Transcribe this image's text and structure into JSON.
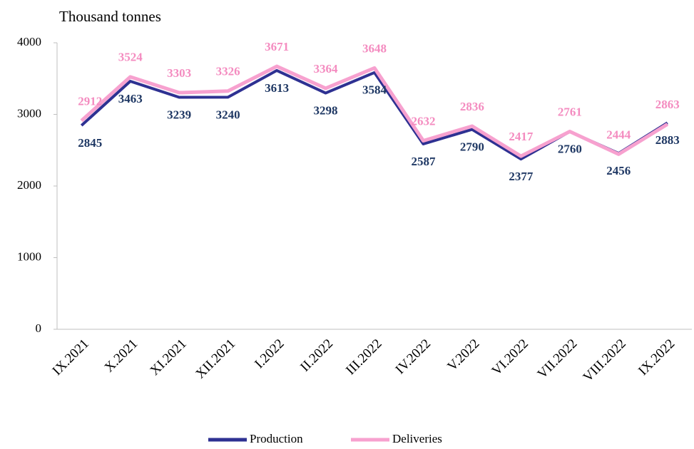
{
  "chart_data": {
    "type": "line",
    "y_label": "Thousand tonnes",
    "categories": [
      "IX.2021",
      "X.2021",
      "XI.2021",
      "XII.2021",
      "I.2022",
      "II.2022",
      "III.2022",
      "IV.2022",
      "V.2022",
      "VI.2022",
      "VII.2022",
      "VIII.2022",
      "IX.2022"
    ],
    "series": [
      {
        "name": "Production",
        "color": "#2e3192",
        "label_color": "#1f3864",
        "values": [
          2845,
          3463,
          3239,
          3240,
          3613,
          3298,
          3584,
          2587,
          2790,
          2377,
          2760,
          2456,
          2883
        ]
      },
      {
        "name": "Deliveries",
        "color": "#f7a1cf",
        "label_color": "#f48cc0",
        "values": [
          2912,
          3524,
          3303,
          3326,
          3671,
          3364,
          3648,
          2632,
          2836,
          2417,
          2761,
          2444,
          2863
        ]
      }
    ],
    "ylim": [
      0,
      4000
    ],
    "yticks": [
      0,
      1000,
      2000,
      3000,
      4000
    ],
    "grid": false,
    "legend": "bottom"
  }
}
